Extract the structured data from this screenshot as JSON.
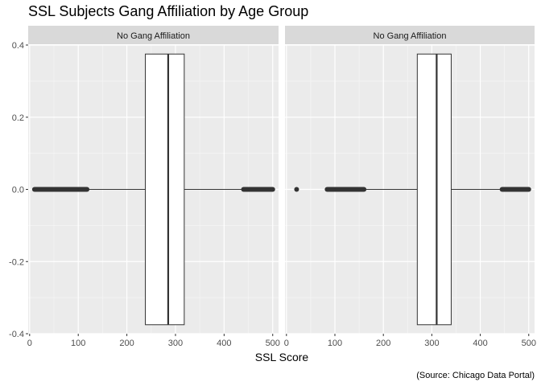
{
  "chart_data": {
    "type": "boxplot",
    "title": "SSL Subjects Gang Affiliation by Age Group",
    "xlabel": "SSL Score",
    "ylabel": "",
    "caption": "(Source: Chicago Data Portal)",
    "xlim": [
      -3,
      512
    ],
    "ylim": [
      -0.4,
      0.4
    ],
    "x_ticks": [
      0,
      100,
      200,
      300,
      400,
      500
    ],
    "y_ticks": [
      -0.4,
      -0.2,
      0.0,
      0.2,
      0.4
    ],
    "y_tick_labels": [
      "-0.4",
      "-0.2",
      "0.0",
      "0.2",
      "0.4"
    ],
    "grid": true,
    "panels": [
      {
        "strip_label": "No Gang Affiliation",
        "box": {
          "min": 115,
          "q1": 238,
          "median": 285,
          "q3": 318,
          "max": 440
        },
        "box_y_range": [
          -0.375,
          0.375
        ],
        "outliers_low": [
          10,
          118
        ],
        "outliers_high": [
          440,
          500
        ]
      },
      {
        "strip_label": "No Gang Affiliation",
        "box": {
          "min": 160,
          "q1": 270,
          "median": 310,
          "q3": 340,
          "max": 445
        },
        "box_y_range": [
          -0.375,
          0.375
        ],
        "outliers_single": [
          21
        ],
        "outliers_low": [
          84,
          160
        ],
        "outliers_high": [
          445,
          500
        ]
      }
    ]
  }
}
